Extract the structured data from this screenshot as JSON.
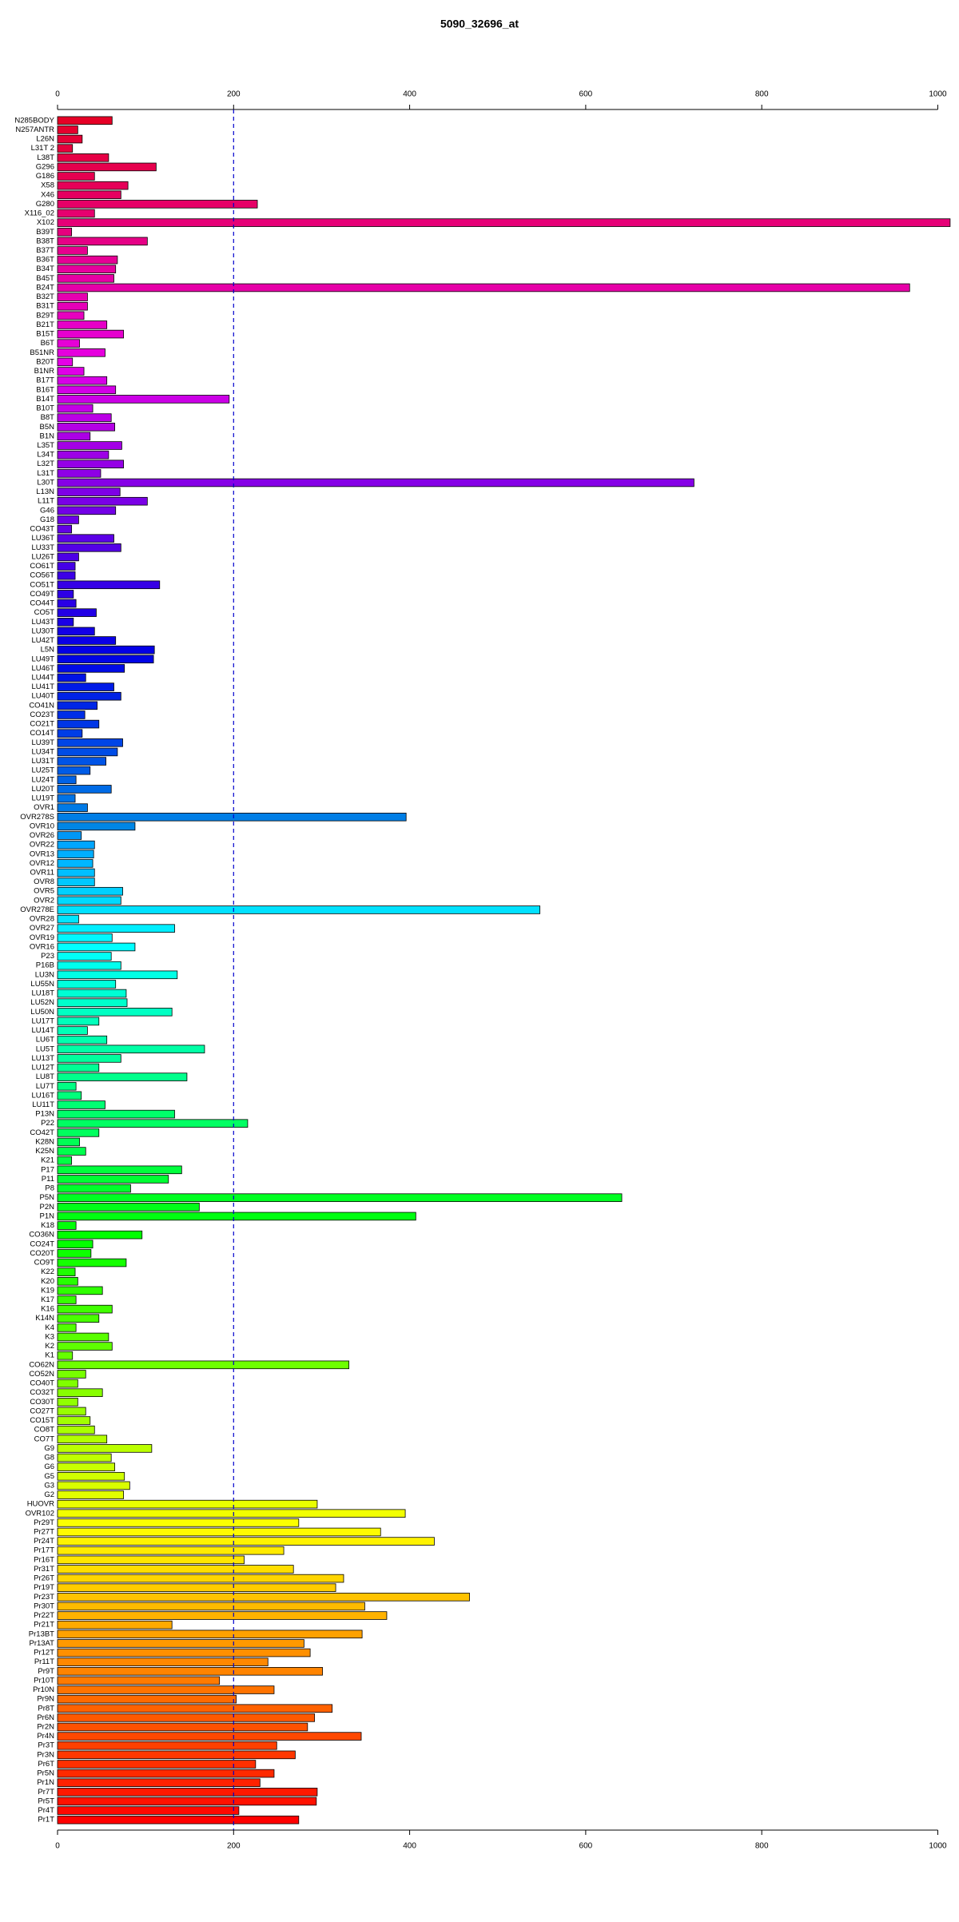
{
  "chart_data": {
    "type": "barh",
    "title": "5090_32696_at",
    "categories": [
      "N285BODY",
      "N257ANTR",
      "L26N",
      "L31T 2",
      "L38T",
      "G296",
      "G186",
      "X58",
      "X46",
      "G280",
      "X116_02",
      "X102",
      "B39T",
      "B38T",
      "B37T",
      "B36T",
      "B34T",
      "B45T",
      "B24T",
      "B32T",
      "B31T",
      "B29T",
      "B21T",
      "B15T",
      "B6T",
      "B51NR",
      "B20T",
      "B1NR",
      "B17T",
      "B16T",
      "B14T",
      "B10T",
      "B8T",
      "B5N",
      "B1N",
      "L35T",
      "L34T",
      "L32T",
      "L31T",
      "L30T",
      "L13N",
      "L11T",
      "G46",
      "G18",
      "CO43T",
      "LU36T",
      "LU33T",
      "LU26T",
      "CO61T",
      "CO56T",
      "CO51T",
      "CO49T",
      "CO44T",
      "CO5T",
      "LU43T",
      "LU30T",
      "LU42T",
      "L5N",
      "LU49T",
      "LU46T",
      "LU44T",
      "LU41T",
      "LU40T",
      "CO41N",
      "CO23T",
      "CO21T",
      "CO14T",
      "LU39T",
      "LU34T",
      "LU31T",
      "LU25T",
      "LU24T",
      "LU20T",
      "LU19T",
      "OVR1",
      "OVR278S",
      "OVR10",
      "OVR26",
      "OVR22",
      "OVR13",
      "OVR12",
      "OVR11",
      "OVR8",
      "OVR5",
      "OVR2",
      "OVR278E",
      "OVR28",
      "OVR27",
      "OVR19",
      "OVR16",
      "P23",
      "P16B",
      "LU3N",
      "LU55N",
      "LU18T",
      "LU52N",
      "LU50N",
      "LU17T",
      "LU14T",
      "LU6T",
      "LU5T",
      "LU13T",
      "LU12T",
      "LU8T",
      "LU7T",
      "LU16T",
      "LU11T",
      "P13N",
      "P22",
      "CO42T",
      "K28N",
      "K25N",
      "K21",
      "P17",
      "P11",
      "P8",
      "P5N",
      "P2N",
      "P1N",
      "K18",
      "CO36N",
      "CO24T",
      "CO20T",
      "CO9T",
      "K22",
      "K20",
      "K19",
      "K17",
      "K16",
      "K14N",
      "K4",
      "K3",
      "K2",
      "K1",
      "CO62N",
      "CO52N",
      "CO40T",
      "CO32T",
      "CO30T",
      "CO27T",
      "CO15T",
      "CO8T",
      "CO7T",
      "G9",
      "G8",
      "G6",
      "G5",
      "G3",
      "G2",
      "HUOVR",
      "OVR102",
      "Pr29T",
      "Pr27T",
      "Pr24T",
      "Pr17T",
      "Pr16T",
      "Pr31T",
      "Pr26T",
      "Pr19T",
      "Pr23T",
      "Pr30T",
      "Pr22T",
      "Pr21T",
      "Pr13BT",
      "Pr13AT",
      "Pr12T",
      "Pr11T",
      "Pr9T",
      "Pr10T",
      "Pr10N",
      "Pr9N",
      "Pr8T",
      "Pr6N",
      "Pr2N",
      "Pr4N",
      "Pr3T",
      "Pr3N",
      "Pr6T",
      "Pr5N",
      "Pr1N",
      "Pr7T",
      "Pr5T",
      "Pr4T",
      "Pr1T"
    ],
    "values": [
      62,
      23,
      28,
      17,
      58,
      112,
      42,
      80,
      72,
      227,
      42,
      1014,
      16,
      102,
      34,
      68,
      66,
      64,
      968,
      34,
      34,
      30,
      56,
      75,
      25,
      54,
      17,
      30,
      56,
      66,
      195,
      40,
      61,
      65,
      37,
      73,
      58,
      75,
      49,
      723,
      71,
      102,
      66,
      24,
      16,
      64,
      72,
      24,
      20,
      20,
      116,
      18,
      21,
      44,
      18,
      42,
      66,
      110,
      109,
      76,
      32,
      64,
      72,
      45,
      31,
      47,
      28,
      74,
      68,
      55,
      37,
      21,
      61,
      20,
      34,
      396,
      88,
      27,
      42,
      41,
      40,
      42,
      42,
      74,
      72,
      548,
      24,
      133,
      62,
      88,
      61,
      72,
      136,
      66,
      78,
      79,
      130,
      47,
      34,
      56,
      167,
      72,
      47,
      147,
      21,
      27,
      54,
      133,
      216,
      47,
      25,
      32,
      16,
      141,
      126,
      83,
      641,
      161,
      407,
      21,
      96,
      40,
      38,
      78,
      20,
      23,
      51,
      21,
      62,
      47,
      21,
      58,
      62,
      17,
      331,
      32,
      23,
      51,
      23,
      32,
      37,
      42,
      56,
      107,
      61,
      65,
      76,
      82,
      75,
      295,
      395,
      274,
      367,
      428,
      257,
      212,
      268,
      325,
      316,
      468,
      349,
      374,
      130,
      346,
      280,
      287,
      239,
      301,
      184,
      246,
      203,
      312,
      292,
      284,
      345,
      249,
      270,
      225,
      246,
      230,
      295,
      294,
      206,
      274
    ],
    "colors": [
      "hsl(350,100%,45%)",
      "hsl(348,100%,45%)",
      "hsl(346,100%,45%)",
      "hsl(344,100%,45%)",
      "hsl(342,100%,45%)",
      "hsl(340,100%,45%)",
      "hsl(339,100%,45%)",
      "hsl(337,100%,45%)",
      "hsl(335,100%,45%)",
      "hsl(333,100%,45%)",
      "hsl(331,100%,45%)",
      "hsl(329,100%,45%)",
      "hsl(327,100%,45%)",
      "hsl(325,100%,45%)",
      "hsl(323,100%,45%)",
      "hsl(321,100%,45%)",
      "hsl(319,100%,45%)",
      "hsl(317,100%,45%)",
      "hsl(316,100%,45%)",
      "hsl(314,100%,45%)",
      "hsl(312,100%,45%)",
      "hsl(310,100%,45%)",
      "hsl(308,100%,45%)",
      "hsl(306,100%,45%)",
      "hsl(304,100%,45%)",
      "hsl(302,100%,45%)",
      "hsl(300,100%,45%)",
      "hsl(298,100%,45%)",
      "hsl(296,100%,45%)",
      "hsl(295,100%,45%)",
      "hsl(293,100%,45%)",
      "hsl(291,100%,45%)",
      "hsl(289,100%,45%)",
      "hsl(287,100%,45%)",
      "hsl(285,100%,45%)",
      "hsl(283,100%,45%)",
      "hsl(281,100%,45%)",
      "hsl(279,100%,45%)",
      "hsl(277,100%,45%)",
      "hsl(275,100%,45%)",
      "hsl(273,100%,45%)",
      "hsl(272,100%,45%)",
      "hsl(270,100%,45%)",
      "hsl(268,100%,45%)",
      "hsl(266,100%,45%)",
      "hsl(264,100%,45%)",
      "hsl(262,100%,45%)",
      "hsl(260,100%,45%)",
      "hsl(258,100%,45%)",
      "hsl(256,100%,45%)",
      "hsl(254,100%,45%)",
      "hsl(252,100%,45%)",
      "hsl(251,100%,45%)",
      "hsl(249,100%,45%)",
      "hsl(247,100%,45%)",
      "hsl(245,100%,45%)",
      "hsl(243,100%,45%)",
      "hsl(241,100%,45%)",
      "hsl(239,100%,45%)",
      "hsl(237,100%,45%)",
      "hsl(235,100%,45%)",
      "hsl(233,100%,45%)",
      "hsl(231,100%,45%)",
      "hsl(230,100%,45%)",
      "hsl(228,100%,45%)",
      "hsl(226,100%,45%)",
      "hsl(224,100%,45%)",
      "hsl(222,100%,45%)",
      "hsl(220,100%,45%)",
      "hsl(218,100%,45%)",
      "hsl(216,100%,45%)",
      "hsl(214,100%,45%)",
      "hsl(212,100%,45%)",
      "hsl(210,100%,45%)",
      "hsl(208,100%,45%)",
      "hsl(207,100%,45%)",
      "hsl(205,100%,45%)",
      "hsl(203,100%,48%)",
      "hsl(201,100%,50%)",
      "hsl(199,100%,50%)",
      "hsl(197,100%,50%)",
      "hsl(195,100%,50%)",
      "hsl(193,100%,50%)",
      "hsl(191,100%,50%)",
      "hsl(189,100%,50%)",
      "hsl(187,100%,50%)",
      "hsl(186,100%,50%)",
      "hsl(184,100%,50%)",
      "hsl(182,100%,50%)",
      "hsl(180,100%,50%)",
      "hsl(178,100%,50%)",
      "hsl(176,100%,50%)",
      "hsl(174,100%,50%)",
      "hsl(172,100%,50%)",
      "hsl(170,100%,50%)",
      "hsl(168,100%,50%)",
      "hsl(166,100%,50%)",
      "hsl(164,100%,50%)",
      "hsl(163,100%,50%)",
      "hsl(161,100%,50%)",
      "hsl(159,100%,50%)",
      "hsl(157,100%,50%)",
      "hsl(155,100%,50%)",
      "hsl(153,100%,50%)",
      "hsl(151,100%,50%)",
      "hsl(149,100%,50%)",
      "hsl(147,100%,50%)",
      "hsl(145,100%,50%)",
      "hsl(143,100%,50%)",
      "hsl(142,100%,50%)",
      "hsl(140,100%,50%)",
      "hsl(138,100%,50%)",
      "hsl(136,100%,50%)",
      "hsl(134,100%,50%)",
      "hsl(132,100%,50%)",
      "hsl(130,100%,50%)",
      "hsl(128,100%,50%)",
      "hsl(126,100%,50%)",
      "hsl(124,100%,50%)",
      "hsl(122,100%,50%)",
      "hsl(120,100%,50%)",
      "hsl(119,100%,50%)",
      "hsl(117,100%,50%)",
      "hsl(115,100%,50%)",
      "hsl(113,100%,50%)",
      "hsl(111,100%,50%)",
      "hsl(109,100%,50%)",
      "hsl(107,100%,50%)",
      "hsl(105,100%,50%)",
      "hsl(103,100%,50%)",
      "hsl(101,100%,50%)",
      "hsl(99,100%,50%)",
      "hsl(98,100%,50%)",
      "hsl(96,100%,50%)",
      "hsl(94,100%,50%)",
      "hsl(92,100%,50%)",
      "hsl(90,100%,50%)",
      "hsl(88,100%,50%)",
      "hsl(86,100%,50%)",
      "hsl(84,100%,50%)",
      "hsl(82,100%,50%)",
      "hsl(80,100%,50%)",
      "hsl(78,100%,50%)",
      "hsl(76,100%,50%)",
      "hsl(75,100%,50%)",
      "hsl(73,100%,50%)",
      "hsl(71,100%,50%)",
      "hsl(69,100%,50%)",
      "hsl(67,100%,50%)",
      "hsl(65,100%,50%)",
      "hsl(63,100%,50%)",
      "hsl(61,100%,50%)",
      "hsl(59,100%,50%)",
      "hsl(57,100%,50%)",
      "hsl(55,100%,50%)",
      "hsl(54,100%,50%)",
      "hsl(52,100%,50%)",
      "hsl(50,100%,50%)",
      "hsl(48,100%,50%)",
      "hsl(46,100%,50%)",
      "hsl(44,100%,50%)",
      "hsl(42,100%,50%)",
      "hsl(40,100%,50%)",
      "hsl(38,100%,50%)",
      "hsl(36,100%,50%)",
      "hsl(34,100%,50%)",
      "hsl(32,100%,50%)",
      "hsl(31,100%,50%)",
      "hsl(29,100%,50%)",
      "hsl(27,100%,50%)",
      "hsl(25,100%,50%)",
      "hsl(23,100%,50%)",
      "hsl(21,100%,50%)",
      "hsl(19,100%,50%)",
      "hsl(17,100%,50%)",
      "hsl(15,100%,50%)",
      "hsl(13,100%,50%)",
      "hsl(11,100%,50%)",
      "hsl(10,100%,50%)",
      "hsl(8,100%,50%)",
      "hsl(6,100%,50%)",
      "hsl(4,100%,50%)",
      "hsl(2,100%,50%)",
      "hsl(0,100%,50%)"
    ],
    "xlim": [
      0,
      1015
    ],
    "xticks": [
      0,
      200,
      400,
      600,
      800,
      1000
    ],
    "reference_line": 200,
    "reference_color": "#0000cc"
  }
}
